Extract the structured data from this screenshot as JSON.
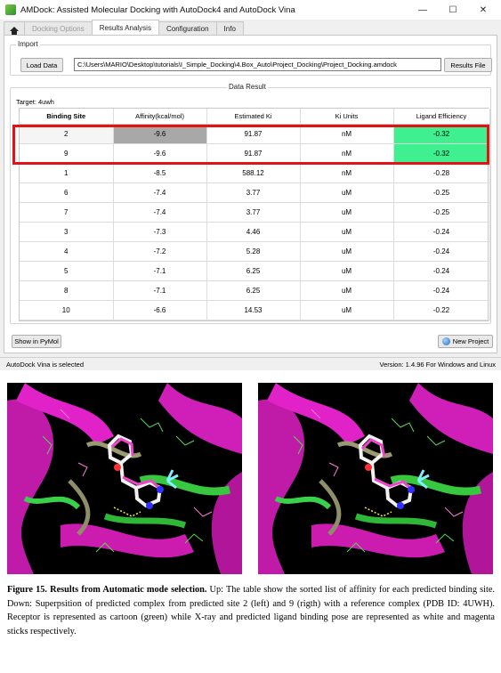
{
  "window": {
    "title": "AMDock: Assisted Molecular Docking with AutoDock4 and AutoDock Vina",
    "controls": {
      "minimize": "—",
      "maximize": "☐",
      "close": "✕"
    }
  },
  "tabs": [
    {
      "label": "Docking Options",
      "state": "disabled"
    },
    {
      "label": "Results Analysis",
      "state": "active"
    },
    {
      "label": "Configuration",
      "state": "normal"
    },
    {
      "label": "Info",
      "state": "normal"
    }
  ],
  "import": {
    "group_title": "Import",
    "load_button": "Load Data",
    "path_value": "C:\\Users\\MARIO\\Desktop\\tutorials\\I_Simple_Docking\\4.Box_Auto\\Project_Docking\\Project_Docking.amdock",
    "results_button": "Results File"
  },
  "results": {
    "group_title": "Data Result",
    "target_label": "Target: 4uwh",
    "columns": [
      "Binding Site",
      "Affinity(kcal/mol)",
      "Estimated Ki",
      "Ki Units",
      "Ligand Efficiency"
    ],
    "rows": [
      {
        "site": "2",
        "affinity": "-9.6",
        "ki": "91.87",
        "units": "nM",
        "le": "-0.32"
      },
      {
        "site": "9",
        "affinity": "-9.6",
        "ki": "91.87",
        "units": "nM",
        "le": "-0.32"
      },
      {
        "site": "1",
        "affinity": "-8.5",
        "ki": "588.12",
        "units": "nM",
        "le": "-0.28"
      },
      {
        "site": "6",
        "affinity": "-7.4",
        "ki": "3.77",
        "units": "uM",
        "le": "-0.25"
      },
      {
        "site": "7",
        "affinity": "-7.4",
        "ki": "3.77",
        "units": "uM",
        "le": "-0.25"
      },
      {
        "site": "3",
        "affinity": "-7.3",
        "ki": "4.46",
        "units": "uM",
        "le": "-0.24"
      },
      {
        "site": "4",
        "affinity": "-7.2",
        "ki": "5.28",
        "units": "uM",
        "le": "-0.24"
      },
      {
        "site": "5",
        "affinity": "-7.1",
        "ki": "6.25",
        "units": "uM",
        "le": "-0.24"
      },
      {
        "site": "8",
        "affinity": "-7.1",
        "ki": "6.25",
        "units": "uM",
        "le": "-0.24"
      },
      {
        "site": "10",
        "affinity": "-6.6",
        "ki": "14.53",
        "units": "uM",
        "le": "-0.22"
      }
    ],
    "best_affinity_color": "#a8a8a8",
    "best_efficiency_color": "#3ef08f",
    "highlight_color": "#e01414"
  },
  "buttons": {
    "show_pymol": "Show in PyMol",
    "new_project": "New Project"
  },
  "statusbar": {
    "left": "AutoDock Vina is selected",
    "right": "Version: 1.4.96 For Windows and Linux"
  },
  "figure_images": [
    {
      "view": "left"
    },
    {
      "view": "right"
    }
  ],
  "caption": {
    "figure_label": "Figure 15. Results from Automatic mode selection.",
    "text": " Up: The table show the sorted list of affinity for each predicted binding site. Down: Superpsition of predicted complex from predicted site 2 (left) and 9 (rigth) with a reference complex (PDB ID: 4UWH). Receptor is represented as cartoon (green) while X-ray and predicted ligand binding pose are represented as white and magenta sticks respectively."
  }
}
